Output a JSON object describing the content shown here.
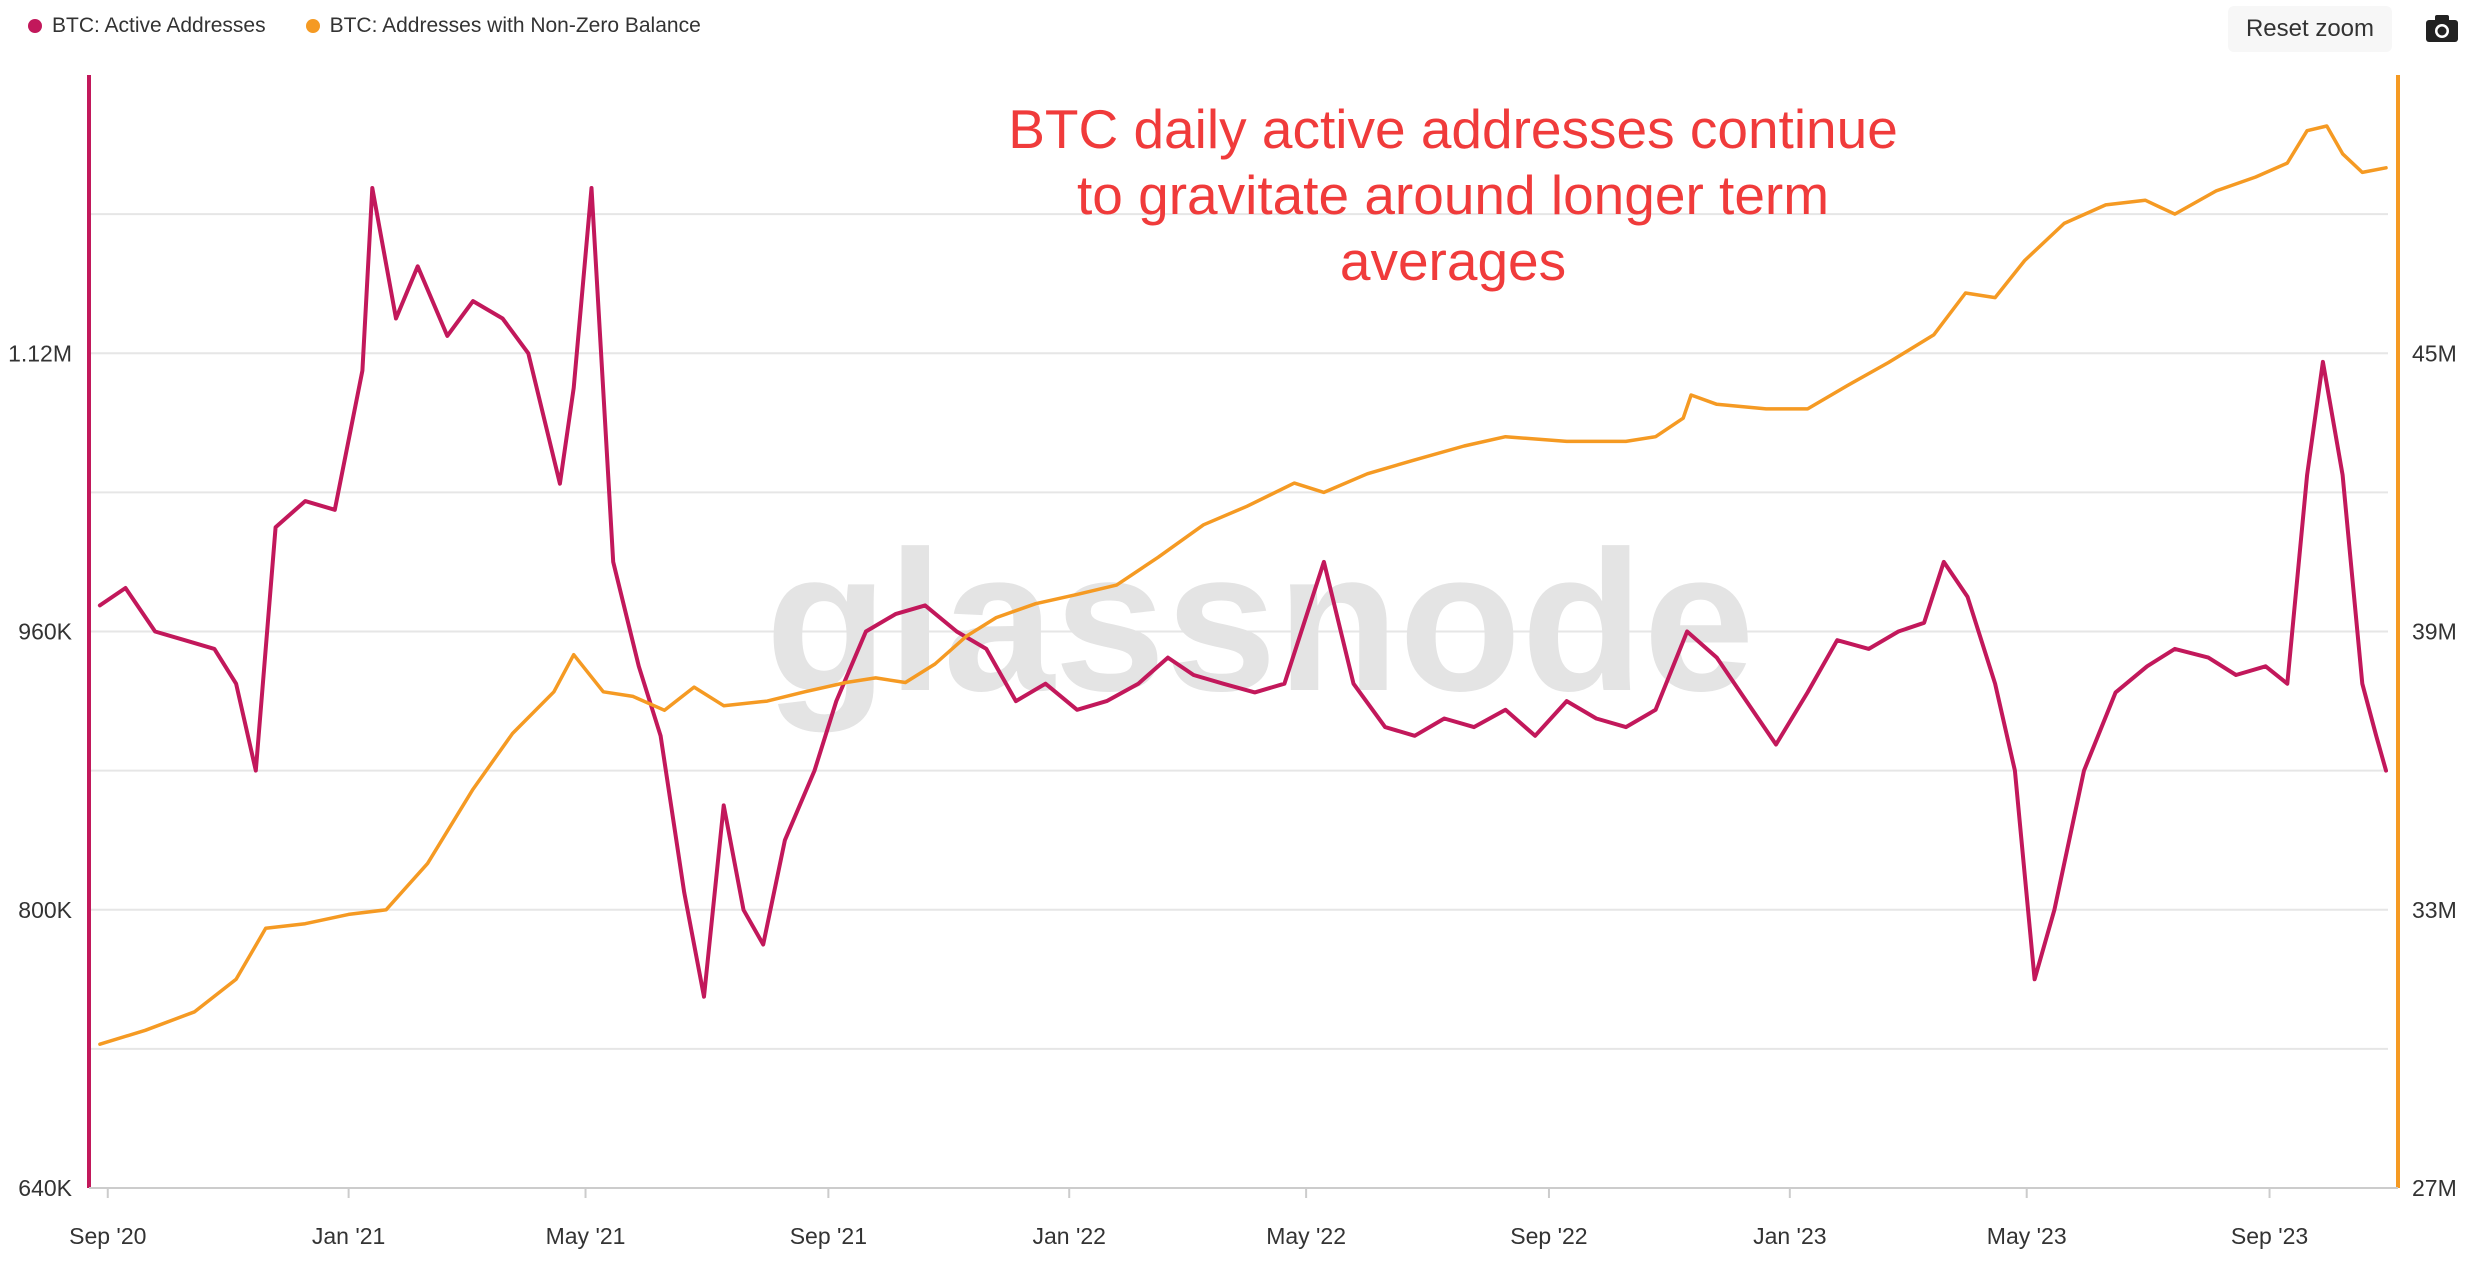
{
  "legend": [
    {
      "label": "BTC: Active Addresses",
      "color": "#c2185b"
    },
    {
      "label": "BTC: Addresses with Non-Zero Balance",
      "color": "#f59a23"
    }
  ],
  "toolbar": {
    "reset_zoom": "Reset zoom",
    "camera_icon": "camera-icon"
  },
  "watermark": "glassnode",
  "chart_data": {
    "type": "line",
    "annotation": [
      "BTC daily active addresses continue",
      "to gravitate around longer term",
      "averages"
    ],
    "x_ticks": [
      "Sep '20",
      "Jan '21",
      "May '21",
      "Sep '21",
      "Jan '22",
      "May '22",
      "Sep '22",
      "Jan '23",
      "May '23",
      "Sep '23"
    ],
    "x_tick_dates": [
      "2020-09-01",
      "2021-01-01",
      "2021-05-01",
      "2021-09-01",
      "2022-01-01",
      "2022-05-01",
      "2022-09-01",
      "2023-01-01",
      "2023-05-01",
      "2023-09-01"
    ],
    "x_range": [
      "2020-08-23",
      "2023-10-31"
    ],
    "y_left": {
      "ticks": [
        "640K",
        "800K",
        "960K",
        "1.12M"
      ],
      "range": [
        640000,
        1280000
      ],
      "color": "#c2185b"
    },
    "y_right": {
      "ticks": [
        "27M",
        "33M",
        "39M",
        "45M"
      ],
      "range": [
        27000000,
        51000000
      ],
      "color": "#f59a23"
    },
    "series": [
      {
        "name": "BTC: Active Addresses",
        "axis": "left",
        "color": "#c2185b",
        "points": [
          [
            "2020-08-28",
            975000
          ],
          [
            "2020-09-10",
            985000
          ],
          [
            "2020-09-25",
            960000
          ],
          [
            "2020-10-10",
            955000
          ],
          [
            "2020-10-25",
            950000
          ],
          [
            "2020-11-05",
            930000
          ],
          [
            "2020-11-15",
            880000
          ],
          [
            "2020-11-25",
            1020000
          ],
          [
            "2020-12-10",
            1035000
          ],
          [
            "2020-12-25",
            1030000
          ],
          [
            "2021-01-08",
            1110000
          ],
          [
            "2021-01-13",
            1215000
          ],
          [
            "2021-01-25",
            1140000
          ],
          [
            "2021-02-05",
            1170000
          ],
          [
            "2021-02-20",
            1130000
          ],
          [
            "2021-03-05",
            1150000
          ],
          [
            "2021-03-20",
            1140000
          ],
          [
            "2021-04-02",
            1120000
          ],
          [
            "2021-04-18",
            1045000
          ],
          [
            "2021-04-25",
            1100000
          ],
          [
            "2021-05-04",
            1215000
          ],
          [
            "2021-05-15",
            1000000
          ],
          [
            "2021-05-28",
            940000
          ],
          [
            "2021-06-08",
            900000
          ],
          [
            "2021-06-20",
            810000
          ],
          [
            "2021-06-30",
            750000
          ],
          [
            "2021-07-10",
            860000
          ],
          [
            "2021-07-20",
            800000
          ],
          [
            "2021-07-30",
            780000
          ],
          [
            "2021-08-10",
            840000
          ],
          [
            "2021-08-25",
            880000
          ],
          [
            "2021-09-05",
            920000
          ],
          [
            "2021-09-20",
            960000
          ],
          [
            "2021-10-05",
            970000
          ],
          [
            "2021-10-20",
            975000
          ],
          [
            "2021-11-05",
            960000
          ],
          [
            "2021-11-20",
            950000
          ],
          [
            "2021-12-05",
            920000
          ],
          [
            "2021-12-20",
            930000
          ],
          [
            "2022-01-05",
            915000
          ],
          [
            "2022-01-20",
            920000
          ],
          [
            "2022-02-05",
            930000
          ],
          [
            "2022-02-20",
            945000
          ],
          [
            "2022-03-05",
            935000
          ],
          [
            "2022-03-20",
            930000
          ],
          [
            "2022-04-05",
            925000
          ],
          [
            "2022-04-20",
            930000
          ],
          [
            "2022-05-10",
            1000000
          ],
          [
            "2022-05-25",
            930000
          ],
          [
            "2022-06-10",
            905000
          ],
          [
            "2022-06-25",
            900000
          ],
          [
            "2022-07-10",
            910000
          ],
          [
            "2022-07-25",
            905000
          ],
          [
            "2022-08-10",
            915000
          ],
          [
            "2022-08-25",
            900000
          ],
          [
            "2022-09-10",
            920000
          ],
          [
            "2022-09-25",
            910000
          ],
          [
            "2022-10-10",
            905000
          ],
          [
            "2022-10-25",
            915000
          ],
          [
            "2022-11-10",
            960000
          ],
          [
            "2022-11-25",
            945000
          ],
          [
            "2022-12-10",
            920000
          ],
          [
            "2022-12-25",
            895000
          ],
          [
            "2023-01-10",
            925000
          ],
          [
            "2023-01-25",
            955000
          ],
          [
            "2023-02-10",
            950000
          ],
          [
            "2023-02-25",
            960000
          ],
          [
            "2023-03-10",
            965000
          ],
          [
            "2023-03-20",
            1000000
          ],
          [
            "2023-04-01",
            980000
          ],
          [
            "2023-04-15",
            930000
          ],
          [
            "2023-04-25",
            880000
          ],
          [
            "2023-05-05",
            760000
          ],
          [
            "2023-05-15",
            800000
          ],
          [
            "2023-05-30",
            880000
          ],
          [
            "2023-06-15",
            925000
          ],
          [
            "2023-07-01",
            940000
          ],
          [
            "2023-07-15",
            950000
          ],
          [
            "2023-08-01",
            945000
          ],
          [
            "2023-08-15",
            935000
          ],
          [
            "2023-08-30",
            940000
          ],
          [
            "2023-09-10",
            930000
          ],
          [
            "2023-09-20",
            1050000
          ],
          [
            "2023-09-28",
            1115000
          ],
          [
            "2023-10-08",
            1050000
          ],
          [
            "2023-10-18",
            930000
          ],
          [
            "2023-10-25",
            900000
          ],
          [
            "2023-10-30",
            880000
          ]
        ]
      },
      {
        "name": "BTC: Addresses with Non-Zero Balance",
        "axis": "right",
        "color": "#f59a23",
        "points": [
          [
            "2020-08-28",
            30100000
          ],
          [
            "2020-09-20",
            30400000
          ],
          [
            "2020-10-15",
            30800000
          ],
          [
            "2020-11-05",
            31500000
          ],
          [
            "2020-11-20",
            32600000
          ],
          [
            "2020-12-10",
            32700000
          ],
          [
            "2021-01-01",
            32900000
          ],
          [
            "2021-01-20",
            33000000
          ],
          [
            "2021-02-10",
            34000000
          ],
          [
            "2021-03-05",
            35600000
          ],
          [
            "2021-03-25",
            36800000
          ],
          [
            "2021-04-15",
            37700000
          ],
          [
            "2021-04-25",
            38500000
          ],
          [
            "2021-05-10",
            37700000
          ],
          [
            "2021-05-25",
            37600000
          ],
          [
            "2021-06-10",
            37300000
          ],
          [
            "2021-06-25",
            37800000
          ],
          [
            "2021-07-10",
            37400000
          ],
          [
            "2021-08-01",
            37500000
          ],
          [
            "2021-08-20",
            37700000
          ],
          [
            "2021-09-10",
            37900000
          ],
          [
            "2021-09-25",
            38000000
          ],
          [
            "2021-10-10",
            37900000
          ],
          [
            "2021-10-25",
            38300000
          ],
          [
            "2021-11-10",
            38900000
          ],
          [
            "2021-11-25",
            39300000
          ],
          [
            "2021-12-15",
            39600000
          ],
          [
            "2022-01-05",
            39800000
          ],
          [
            "2022-01-25",
            40000000
          ],
          [
            "2022-02-15",
            40600000
          ],
          [
            "2022-03-10",
            41300000
          ],
          [
            "2022-04-01",
            41700000
          ],
          [
            "2022-04-25",
            42200000
          ],
          [
            "2022-05-10",
            42000000
          ],
          [
            "2022-06-01",
            42400000
          ],
          [
            "2022-06-25",
            42700000
          ],
          [
            "2022-07-20",
            43000000
          ],
          [
            "2022-08-10",
            43200000
          ],
          [
            "2022-09-10",
            43100000
          ],
          [
            "2022-10-10",
            43100000
          ],
          [
            "2022-10-25",
            43200000
          ],
          [
            "2022-11-08",
            43600000
          ],
          [
            "2022-11-12",
            44100000
          ],
          [
            "2022-11-25",
            43900000
          ],
          [
            "2022-12-20",
            43800000
          ],
          [
            "2023-01-10",
            43800000
          ],
          [
            "2023-01-30",
            44300000
          ],
          [
            "2023-02-20",
            44800000
          ],
          [
            "2023-03-15",
            45400000
          ],
          [
            "2023-03-31",
            46300000
          ],
          [
            "2023-04-15",
            46200000
          ],
          [
            "2023-04-30",
            47000000
          ],
          [
            "2023-05-20",
            47800000
          ],
          [
            "2023-06-10",
            48200000
          ],
          [
            "2023-06-30",
            48300000
          ],
          [
            "2023-07-15",
            48000000
          ],
          [
            "2023-08-05",
            48500000
          ],
          [
            "2023-08-25",
            48800000
          ],
          [
            "2023-09-10",
            49100000
          ],
          [
            "2023-09-20",
            49800000
          ],
          [
            "2023-09-30",
            49900000
          ],
          [
            "2023-10-08",
            49300000
          ],
          [
            "2023-10-18",
            48900000
          ],
          [
            "2023-10-30",
            49000000
          ]
        ]
      }
    ]
  }
}
